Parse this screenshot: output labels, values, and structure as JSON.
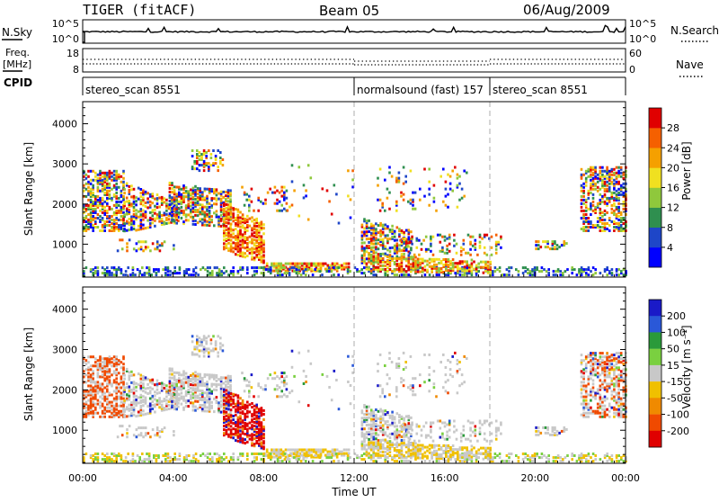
{
  "header": {
    "title": "TIGER (fitACF)",
    "beam": "Beam 05",
    "date": "06/Aug/2009"
  },
  "noise_panel": {
    "left_label": "N.Sky",
    "right_label": "N.Search",
    "left_ticks": [
      "10^5",
      "10^0"
    ],
    "right_ticks": [
      "10^5",
      "10^0"
    ]
  },
  "freq_panel": {
    "left_label_1": "Freq.",
    "left_label_2": "[MHz]",
    "right_label": "Nave",
    "left_ticks": [
      "18",
      "8"
    ],
    "right_ticks": [
      "60",
      "0"
    ]
  },
  "cpid": {
    "label": "CPID",
    "segments": [
      {
        "label": "stereo_scan 8551",
        "start": 0,
        "end": 12
      },
      {
        "label": "normalsound (fast) 157",
        "start": 12,
        "end": 18
      },
      {
        "label": "stereo_scan 8551",
        "start": 18,
        "end": 24
      }
    ]
  },
  "chart_data": [
    {
      "type": "heatmap",
      "name": "power",
      "ylabel": "Slant Range [km]",
      "ylim": [
        180,
        4550
      ],
      "yticks": [
        1000,
        2000,
        3000,
        4000
      ],
      "xlim": [
        0,
        24
      ],
      "colorbar": {
        "label": "Power [dB]",
        "ticks": [
          "4",
          "8",
          "12",
          "16",
          "20",
          "24",
          "28"
        ],
        "colors": [
          "#0000ff",
          "#1e46c8",
          "#2f8f4f",
          "#8fc83c",
          "#f0e020",
          "#f5a000",
          "#f56000",
          "#e00000"
        ]
      }
    },
    {
      "type": "heatmap",
      "name": "velocity",
      "ylabel": "Slant Range [km]",
      "ylim": [
        180,
        4550
      ],
      "yticks": [
        1000,
        2000,
        3000,
        4000
      ],
      "xlim": [
        0,
        24
      ],
      "xlabel": "Time UT",
      "xticks": [
        "00:00",
        "04:00",
        "08:00",
        "12:00",
        "16:00",
        "20:00",
        "00:00"
      ],
      "colorbar": {
        "label": "Velocity [m s⁻¹]",
        "ticks": [
          "200",
          "100",
          "50",
          "15",
          "-15",
          "-50",
          "-100",
          "-200"
        ],
        "colors": [
          "#1a1ac8",
          "#2a58d8",
          "#2a9a3a",
          "#7ad040",
          "#c8c8c8",
          "#f0c000",
          "#f08a00",
          "#f04a00",
          "#e00000"
        ]
      }
    }
  ]
}
